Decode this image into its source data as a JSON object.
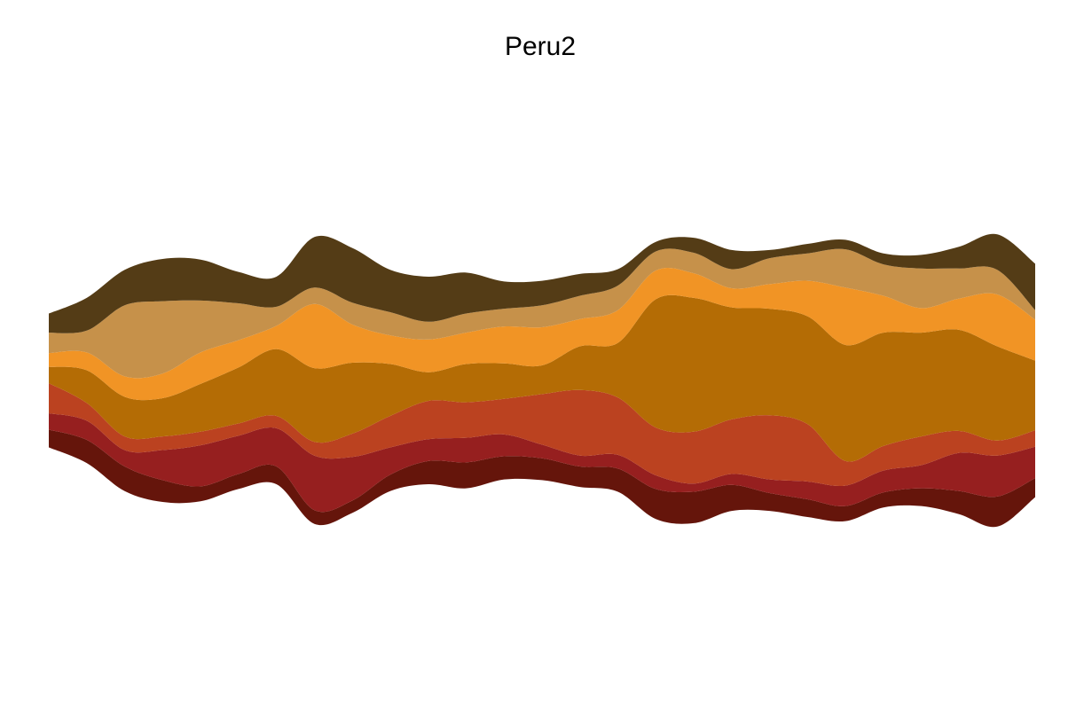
{
  "chart_data": {
    "type": "area",
    "subtype": "streamgraph",
    "title": "Peru2",
    "xlabel": "",
    "ylabel": "",
    "axes_visible": false,
    "grid": false,
    "legend": "none",
    "x": [
      0,
      1,
      2,
      3,
      4,
      5,
      6,
      7,
      8,
      9,
      10,
      11,
      12,
      13,
      14,
      15,
      16,
      17,
      18,
      19,
      20,
      21,
      22,
      23,
      24,
      25,
      26
    ],
    "series": [
      {
        "color": "#65150b",
        "values": [
          1.3,
          1.7,
          1.8,
          1.6,
          1.1,
          1.1,
          1.3,
          1.0,
          0.9,
          1.2,
          1.7,
          1.9,
          1.7,
          1.6,
          1.5,
          1.7,
          2.2,
          2.3,
          1.9,
          1.3,
          1.3,
          1.1,
          1.1,
          1.3,
          1.7,
          2.2,
          1.4
        ]
      },
      {
        "color": "#961f1f",
        "values": [
          1.2,
          1.4,
          1.2,
          2.2,
          3.0,
          2.8,
          2.8,
          4.0,
          3.2,
          2.0,
          1.6,
          1.8,
          1.6,
          1.0,
          0.8,
          1.0,
          1.0,
          0.6,
          0.8,
          1.0,
          1.3,
          1.5,
          1.6,
          1.7,
          2.8,
          3.0,
          2.3
        ]
      },
      {
        "color": "#bb4220",
        "values": [
          2.2,
          1.3,
          1.0,
          1.0,
          1.0,
          0.9,
          0.9,
          1.0,
          1.7,
          2.3,
          2.8,
          2.6,
          2.6,
          3.7,
          4.8,
          4.2,
          3.5,
          3.8,
          4.0,
          4.7,
          4.2,
          1.8,
          1.8,
          2.1,
          1.6,
          1.1,
          1.2
        ]
      },
      {
        "color": "#b46c05",
        "values": [
          1.2,
          2.4,
          2.9,
          2.8,
          3.5,
          4.1,
          4.9,
          5.4,
          5.2,
          3.8,
          2.1,
          2.8,
          2.6,
          2.1,
          3.2,
          4.0,
          9.4,
          9.8,
          8.2,
          7.8,
          7.9,
          8.5,
          8.3,
          7.6,
          7.4,
          6.9,
          5.1
        ]
      },
      {
        "color": "#f19425",
        "values": [
          1.0,
          1.3,
          1.5,
          1.8,
          2.3,
          2.0,
          1.7,
          4.7,
          2.8,
          2.1,
          2.4,
          2.3,
          2.7,
          2.8,
          2.0,
          2.4,
          2.1,
          1.8,
          1.4,
          1.8,
          2.6,
          4.2,
          2.7,
          1.8,
          2.3,
          3.8,
          3.0
        ]
      },
      {
        "color": "#c6914a",
        "values": [
          1.5,
          1.6,
          5.2,
          5.3,
          3.8,
          2.7,
          1.4,
          1.2,
          1.6,
          1.7,
          1.3,
          1.4,
          1.3,
          1.6,
          1.7,
          1.8,
          1.4,
          1.5,
          1.4,
          1.9,
          2.0,
          2.8,
          2.3,
          2.9,
          2.2,
          1.8,
          0.7
        ]
      },
      {
        "color": "#543c16",
        "values": [
          1.4,
          2.4,
          2.6,
          3.1,
          3.0,
          2.3,
          2.2,
          3.7,
          4.0,
          3.1,
          3.3,
          3.0,
          2.0,
          1.8,
          1.6,
          1.2,
          0.7,
          1.1,
          1.4,
          0.6,
          0.7,
          0.7,
          0.8,
          1.0,
          1.6,
          2.6,
          3.4
        ]
      }
    ]
  }
}
